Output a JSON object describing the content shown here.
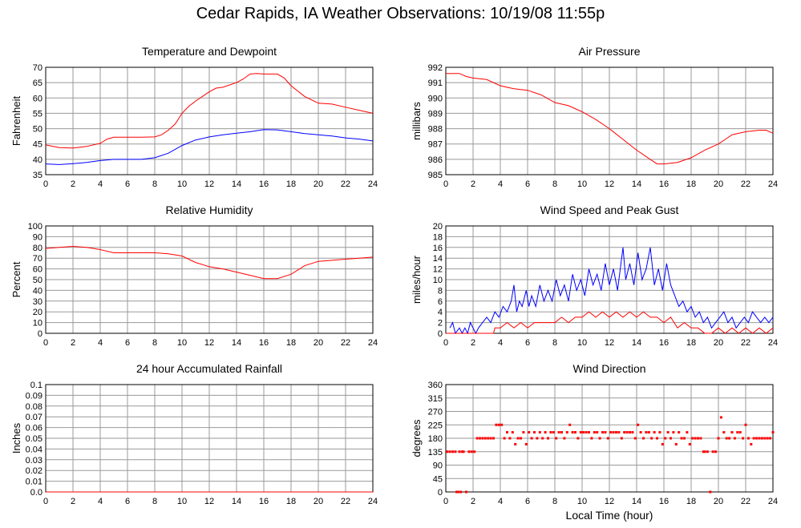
{
  "page": {
    "title": "Cedar Rapids, IA Weather Observations: 10/19/08 11:55p"
  },
  "colors": {
    "red": "#ff0000",
    "blue": "#0000ff",
    "grid": "#999999"
  },
  "chart_data": [
    {
      "type": "line",
      "title": "Temperature and Dewpoint",
      "ylabel": "Fahrenheit",
      "xlabel": "",
      "xlim": [
        0,
        24
      ],
      "ylim": [
        35,
        70
      ],
      "xticks": [
        0,
        2,
        4,
        6,
        8,
        10,
        12,
        14,
        16,
        18,
        20,
        22,
        24
      ],
      "yticks": [
        35,
        40,
        45,
        50,
        55,
        60,
        65,
        70
      ],
      "grid": true,
      "series": [
        {
          "color": "#ff0000",
          "x": [
            0,
            1,
            2,
            3,
            4,
            4.5,
            5,
            6,
            7,
            8,
            8.5,
            9,
            9.5,
            10,
            10.5,
            11,
            12,
            12.5,
            13,
            14,
            14.5,
            15,
            15.5,
            16,
            17,
            17.5,
            18,
            19,
            20,
            21,
            22,
            23,
            24
          ],
          "y": [
            44.7,
            43.8,
            43.7,
            44.2,
            45.2,
            46.6,
            47.2,
            47.2,
            47.2,
            47.3,
            48,
            49.5,
            51.5,
            55,
            57.3,
            59,
            62,
            63.2,
            63.5,
            65,
            66.2,
            67.8,
            68,
            67.8,
            67.8,
            66.5,
            64,
            60.5,
            58.3,
            58,
            57,
            56,
            55
          ]
        },
        {
          "color": "#0000ff",
          "x": [
            0,
            1,
            2,
            3,
            4,
            5,
            6,
            7,
            8,
            9,
            10,
            11,
            12,
            13,
            14,
            15,
            16,
            17,
            18,
            19,
            20,
            21,
            22,
            23,
            24
          ],
          "y": [
            38.5,
            38.3,
            38.6,
            39,
            39.6,
            40,
            40,
            40,
            40.5,
            42,
            44.5,
            46.3,
            47.3,
            48,
            48.5,
            49,
            49.7,
            49.6,
            49,
            48.4,
            48,
            47.6,
            47,
            46.6,
            46
          ]
        }
      ]
    },
    {
      "type": "line",
      "title": "Air Pressure",
      "ylabel": "millibars",
      "xlabel": "",
      "xlim": [
        0,
        24
      ],
      "ylim": [
        985,
        992
      ],
      "xticks": [
        0,
        2,
        4,
        6,
        8,
        10,
        12,
        14,
        16,
        18,
        20,
        22,
        24
      ],
      "yticks": [
        985,
        986,
        987,
        988,
        989,
        990,
        991,
        992
      ],
      "grid": true,
      "series": [
        {
          "color": "#ff0000",
          "x": [
            0,
            1,
            1.5,
            2,
            3,
            4,
            5,
            6,
            7,
            8,
            9,
            10,
            11,
            12,
            13,
            14,
            15,
            15.5,
            16,
            17,
            18,
            19,
            20,
            20.5,
            21,
            22,
            23,
            23.5,
            24
          ],
          "y": [
            991.6,
            991.6,
            991.4,
            991.3,
            991.2,
            990.8,
            990.6,
            990.5,
            990.2,
            989.7,
            989.5,
            989.1,
            988.6,
            988,
            987.3,
            986.6,
            986,
            985.7,
            985.7,
            985.8,
            986.1,
            986.6,
            987,
            987.3,
            987.6,
            987.8,
            987.9,
            987.9,
            987.7
          ]
        }
      ]
    },
    {
      "type": "line",
      "title": "Relative Humidity",
      "ylabel": "Percent",
      "xlabel": "",
      "xlim": [
        0,
        24
      ],
      "ylim": [
        0,
        100
      ],
      "xticks": [
        0,
        2,
        4,
        6,
        8,
        10,
        12,
        14,
        16,
        18,
        20,
        22,
        24
      ],
      "yticks": [
        0,
        10,
        20,
        30,
        40,
        50,
        60,
        70,
        80,
        90,
        100
      ],
      "grid": true,
      "series": [
        {
          "color": "#ff0000",
          "x": [
            0,
            1,
            2,
            3,
            4,
            5,
            6,
            7,
            8,
            9,
            10,
            11,
            12,
            13,
            14,
            15,
            16,
            17,
            18,
            19,
            20,
            21,
            22,
            23,
            24
          ],
          "y": [
            79,
            80,
            81,
            80,
            78,
            75,
            75,
            75,
            75,
            74,
            72,
            66,
            62,
            60,
            57,
            54,
            51,
            51,
            55,
            63,
            67,
            68,
            69,
            70,
            71
          ]
        }
      ]
    },
    {
      "type": "line",
      "title": "Wind Speed and Peak Gust",
      "ylabel": "miles/hour",
      "xlabel": "",
      "xlim": [
        0,
        24
      ],
      "ylim": [
        0,
        20
      ],
      "xticks": [
        0,
        2,
        4,
        6,
        8,
        10,
        12,
        14,
        16,
        18,
        20,
        22,
        24
      ],
      "yticks": [
        0,
        2,
        4,
        6,
        8,
        10,
        12,
        14,
        16,
        18,
        20
      ],
      "grid": true,
      "series": [
        {
          "color": "#0000ff",
          "x": [
            0.3,
            0.5,
            0.7,
            1,
            1.2,
            1.4,
            1.6,
            1.8,
            2,
            2.2,
            2.4,
            2.7,
            3,
            3.3,
            3.6,
            3.9,
            4.2,
            4.5,
            4.8,
            5,
            5.2,
            5.4,
            5.6,
            5.9,
            6.1,
            6.3,
            6.6,
            6.9,
            7.2,
            7.5,
            7.8,
            8.1,
            8.4,
            8.7,
            9,
            9.3,
            9.6,
            9.9,
            10.2,
            10.5,
            10.8,
            11.1,
            11.4,
            11.7,
            12,
            12.3,
            12.6,
            12.9,
            13,
            13.2,
            13.5,
            13.8,
            14.1,
            14.4,
            14.7,
            15,
            15.3,
            15.6,
            15.9,
            16.2,
            16.5,
            16.8,
            17.1,
            17.4,
            17.7,
            18,
            18.3,
            18.6,
            18.9,
            19.2,
            19.5,
            19.8,
            20.1,
            20.4,
            20.7,
            21,
            21.3,
            21.6,
            21.9,
            22.2,
            22.5,
            22.8,
            23.1,
            23.4,
            23.7,
            24
          ],
          "y": [
            1,
            2,
            0,
            1,
            0,
            1,
            0,
            2,
            1,
            0,
            1,
            2,
            3,
            2,
            4,
            3,
            5,
            4,
            6,
            9,
            4,
            6,
            5,
            8,
            5,
            7,
            5,
            9,
            6,
            8,
            6,
            10,
            7,
            9,
            6,
            11,
            8,
            10,
            7,
            12,
            9,
            11,
            8,
            13,
            9,
            12,
            8,
            14,
            16,
            10,
            13,
            9,
            15,
            10,
            12,
            16,
            9,
            12,
            8,
            13,
            9,
            7,
            5,
            6,
            4,
            5,
            3,
            4,
            2,
            3,
            1,
            2,
            3,
            4,
            2,
            3,
            1,
            2,
            3,
            2,
            4,
            3,
            2,
            3,
            2,
            3
          ]
        },
        {
          "color": "#ff0000",
          "x": [
            0,
            2.5,
            3,
            3.5,
            3.6,
            4,
            4.5,
            5,
            5.5,
            6,
            6.5,
            7,
            7.5,
            8,
            8.5,
            9,
            9.5,
            10,
            10.5,
            11,
            11.5,
            12,
            12.5,
            13,
            13.5,
            14,
            14.5,
            15,
            15.5,
            16,
            16.5,
            17,
            17.5,
            18,
            18.5,
            19,
            19.5,
            20,
            20.5,
            21,
            21.5,
            22,
            22.5,
            23,
            23.5,
            24
          ],
          "y": [
            0,
            0,
            0,
            0,
            1,
            1,
            2,
            1,
            2,
            1,
            2,
            2,
            2,
            2,
            3,
            2,
            3,
            3,
            4,
            3,
            4,
            3,
            4,
            3,
            4,
            3,
            4,
            3,
            3,
            2,
            3,
            1,
            2,
            1,
            1,
            0,
            0,
            1,
            0,
            1,
            0,
            1,
            0,
            1,
            0,
            1
          ]
        }
      ]
    },
    {
      "type": "line",
      "title": "24 hour Accumulated Rainfall",
      "ylabel": "Inches",
      "xlabel": "",
      "xlim": [
        0,
        24
      ],
      "ylim": [
        0,
        0.1
      ],
      "xticks": [
        0,
        2,
        4,
        6,
        8,
        10,
        12,
        14,
        16,
        18,
        20,
        22,
        24
      ],
      "yticks": [
        "0.0",
        "0.01",
        "0.02",
        "0.03",
        "0.04",
        "0.05",
        "0.06",
        "0.07",
        "0.08",
        "0.09",
        "0.1"
      ],
      "grid": true,
      "series": [
        {
          "color": "#ff0000",
          "x": [
            0,
            24
          ],
          "y": [
            0,
            0
          ]
        }
      ]
    },
    {
      "type": "scatter",
      "title": "Wind Direction",
      "ylabel": "degrees",
      "xlabel": "Local Time (hour)",
      "xlim": [
        0,
        24
      ],
      "ylim": [
        0,
        360
      ],
      "xticks": [
        0,
        2,
        4,
        6,
        8,
        10,
        12,
        14,
        16,
        18,
        20,
        22,
        24
      ],
      "yticks": [
        0,
        45,
        90,
        135,
        180,
        225,
        270,
        315,
        360
      ],
      "grid": true,
      "series": [
        {
          "color": "#ff0000",
          "x": [
            0.1,
            0.3,
            0.5,
            0.7,
            0.8,
            0.9,
            1.0,
            1.1,
            1.2,
            1.3,
            1.5,
            1.7,
            1.9,
            2.1,
            2.3,
            2.5,
            2.7,
            2.9,
            3.1,
            3.3,
            3.5,
            3.7,
            3.9,
            4.1,
            4.3,
            4.5,
            4.7,
            4.9,
            5.1,
            5.3,
            5.5,
            5.7,
            5.9,
            6.1,
            6.3,
            6.5,
            6.7,
            6.9,
            7.1,
            7.3,
            7.5,
            7.7,
            7.9,
            8.1,
            8.3,
            8.5,
            8.7,
            8.9,
            9.1,
            9.3,
            9.5,
            9.7,
            9.9,
            10.1,
            10.3,
            10.5,
            10.7,
            10.9,
            11.1,
            11.3,
            11.5,
            11.7,
            11.9,
            12.1,
            12.3,
            12.5,
            12.7,
            12.9,
            13.1,
            13.3,
            13.5,
            13.7,
            13.9,
            14.1,
            14.3,
            14.5,
            14.7,
            14.9,
            15.1,
            15.3,
            15.5,
            15.7,
            15.9,
            16.1,
            16.3,
            16.5,
            16.7,
            16.9,
            17.1,
            17.3,
            17.5,
            17.7,
            17.9,
            18.1,
            18.3,
            18.5,
            18.7,
            18.9,
            19.0,
            19.2,
            19.4,
            19.6,
            19.8,
            20.0,
            20.2,
            20.4,
            20.6,
            20.8,
            21.0,
            21.2,
            21.4,
            21.6,
            21.8,
            22.0,
            22.2,
            22.4,
            22.6,
            22.8,
            23.0,
            23.2,
            23.4,
            23.6,
            23.8,
            24.0
          ],
          "y": [
            135,
            135,
            135,
            135,
            0,
            0,
            135,
            0,
            135,
            135,
            0,
            135,
            135,
            135,
            180,
            180,
            180,
            180,
            180,
            180,
            180,
            225,
            225,
            225,
            180,
            200,
            180,
            200,
            160,
            180,
            180,
            200,
            160,
            200,
            180,
            200,
            180,
            200,
            180,
            200,
            180,
            200,
            200,
            180,
            200,
            200,
            180,
            200,
            225,
            200,
            200,
            180,
            200,
            200,
            200,
            200,
            180,
            200,
            200,
            180,
            200,
            200,
            180,
            200,
            200,
            200,
            200,
            180,
            200,
            200,
            200,
            200,
            180,
            225,
            200,
            180,
            200,
            200,
            180,
            200,
            180,
            200,
            160,
            180,
            200,
            180,
            200,
            160,
            200,
            180,
            180,
            200,
            160,
            180,
            180,
            180,
            180,
            135,
            135,
            135,
            0,
            135,
            135,
            180,
            250,
            200,
            180,
            180,
            200,
            180,
            200,
            200,
            180,
            225,
            180,
            160,
            180,
            180,
            180,
            180,
            180,
            180,
            180,
            200
          ]
        }
      ]
    }
  ]
}
